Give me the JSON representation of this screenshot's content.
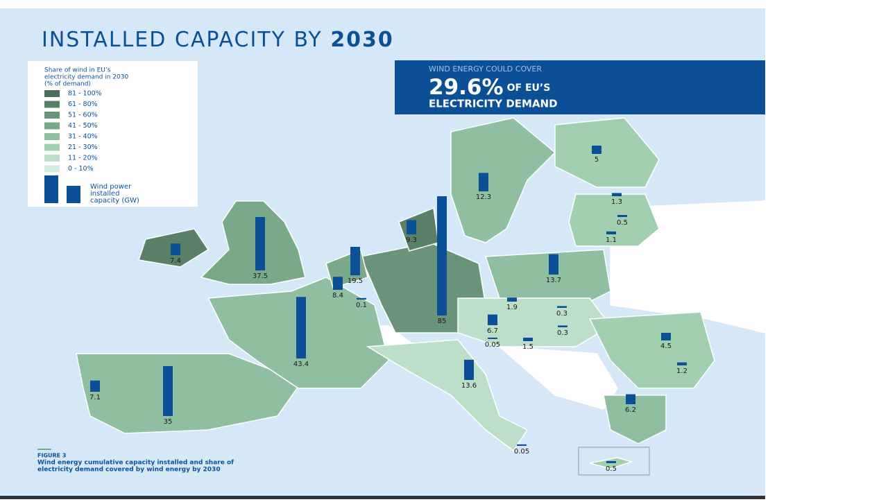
{
  "title": {
    "text": "INSTALLED CAPACITY BY",
    "year": "2030"
  },
  "callout": {
    "line1": "WIND ENERGY COULD COVER",
    "value": "29.6%",
    "rest": "OF EU’S",
    "line3": "ELECTRICITY DEMAND"
  },
  "legend": {
    "title": [
      "Share of wind in EU’s",
      "electricity demand in 2030",
      "(% of demand)"
    ],
    "items": [
      "81 - 100%",
      "61 - 80%",
      "51 - 60%",
      "41 - 50%",
      "31 - 40%",
      "21 - 30%",
      "11 - 20%",
      "0 - 10%"
    ],
    "colors": [
      "#4d6e5a",
      "#5a8068",
      "#6a9479",
      "#7aa98a",
      "#8fbfa0",
      "#a3cfb1",
      "#bddec8",
      "#d5ebdf"
    ],
    "bar_label": [
      "Wind power",
      "installed",
      "capacity (GW)"
    ]
  },
  "capacities": [
    7.4,
    37.5,
    19.5,
    8.4,
    0.1,
    9.3,
    85,
    12.3,
    5,
    1.3,
    0.5,
    1.1,
    13.7,
    1.9,
    0.3,
    0.3,
    6.7,
    0.05,
    1.5,
    4.5,
    1.2,
    6.2,
    13.6,
    43.4,
    35,
    7.1,
    0.05,
    0.5
  ],
  "bar_color": "#0b5096",
  "figure": {
    "label": "FIGURE 3",
    "caption": [
      "Wind energy cumulative capacity installed and share of",
      "electricity demand covered by wind energy by 2030"
    ]
  }
}
